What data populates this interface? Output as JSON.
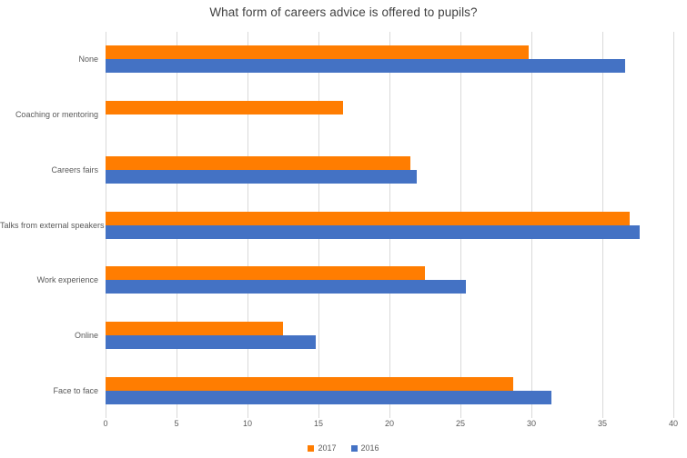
{
  "title": "What form of careers advice is offered to pupils?",
  "colors": {
    "series_2017": "#ff7d01",
    "series_2016": "#4472c4",
    "gridline": "#d9d9d9",
    "axis_text": "#595959",
    "title_text": "#404040",
    "background": "#ffffff"
  },
  "chart_data": {
    "type": "bar",
    "orientation": "horizontal",
    "title": "What form of careers advice is offered to pupils?",
    "xlabel": "",
    "ylabel": "",
    "categories": [
      "None",
      "Coaching or mentoring",
      "Careers fairs",
      "Talks from external speakers",
      "Work experience",
      "Online",
      "Face to face"
    ],
    "series": [
      {
        "name": "2017",
        "color": "#ff7d01",
        "values": [
          29.8,
          16.7,
          21.5,
          36.9,
          22.5,
          12.5,
          28.7
        ]
      },
      {
        "name": "2016",
        "color": "#4472c4",
        "values": [
          36.6,
          0,
          21.9,
          37.6,
          25.4,
          14.8,
          31.4
        ]
      }
    ],
    "xlim": [
      0,
      40
    ],
    "xticks": [
      0,
      5,
      10,
      15,
      20,
      25,
      30,
      35,
      40
    ],
    "grid": true,
    "legend_position": "bottom"
  },
  "legend": {
    "items": [
      {
        "label": "2017",
        "color": "#ff7d01"
      },
      {
        "label": "2016",
        "color": "#4472c4"
      }
    ]
  }
}
